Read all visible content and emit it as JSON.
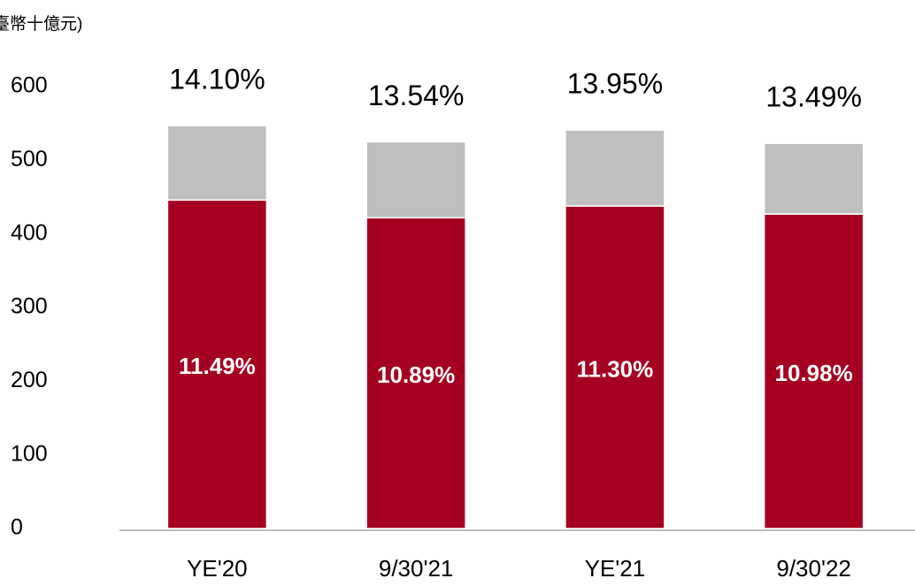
{
  "chart_data": {
    "type": "stacked_bar",
    "subtitle": "臺幣十億元)",
    "categories": [
      "YE'20",
      "9/30'21",
      "YE'21",
      "9/30'22"
    ],
    "series": [
      {
        "color": "#a50021",
        "values": [
          446,
          422,
          438,
          427
        ]
      },
      {
        "color": "#bfbfbf",
        "values": [
          101,
          103,
          103,
          96
        ]
      }
    ],
    "inside_labels": [
      "11.49%",
      "10.89%",
      "11.30%",
      "10.98%"
    ],
    "top_labels": [
      "14.10%",
      "13.54%",
      "13.95%",
      "13.49%"
    ],
    "ylim": [
      0,
      600
    ],
    "yticks": [
      0,
      100,
      200,
      300,
      400,
      500,
      600
    ],
    "grid": false
  }
}
